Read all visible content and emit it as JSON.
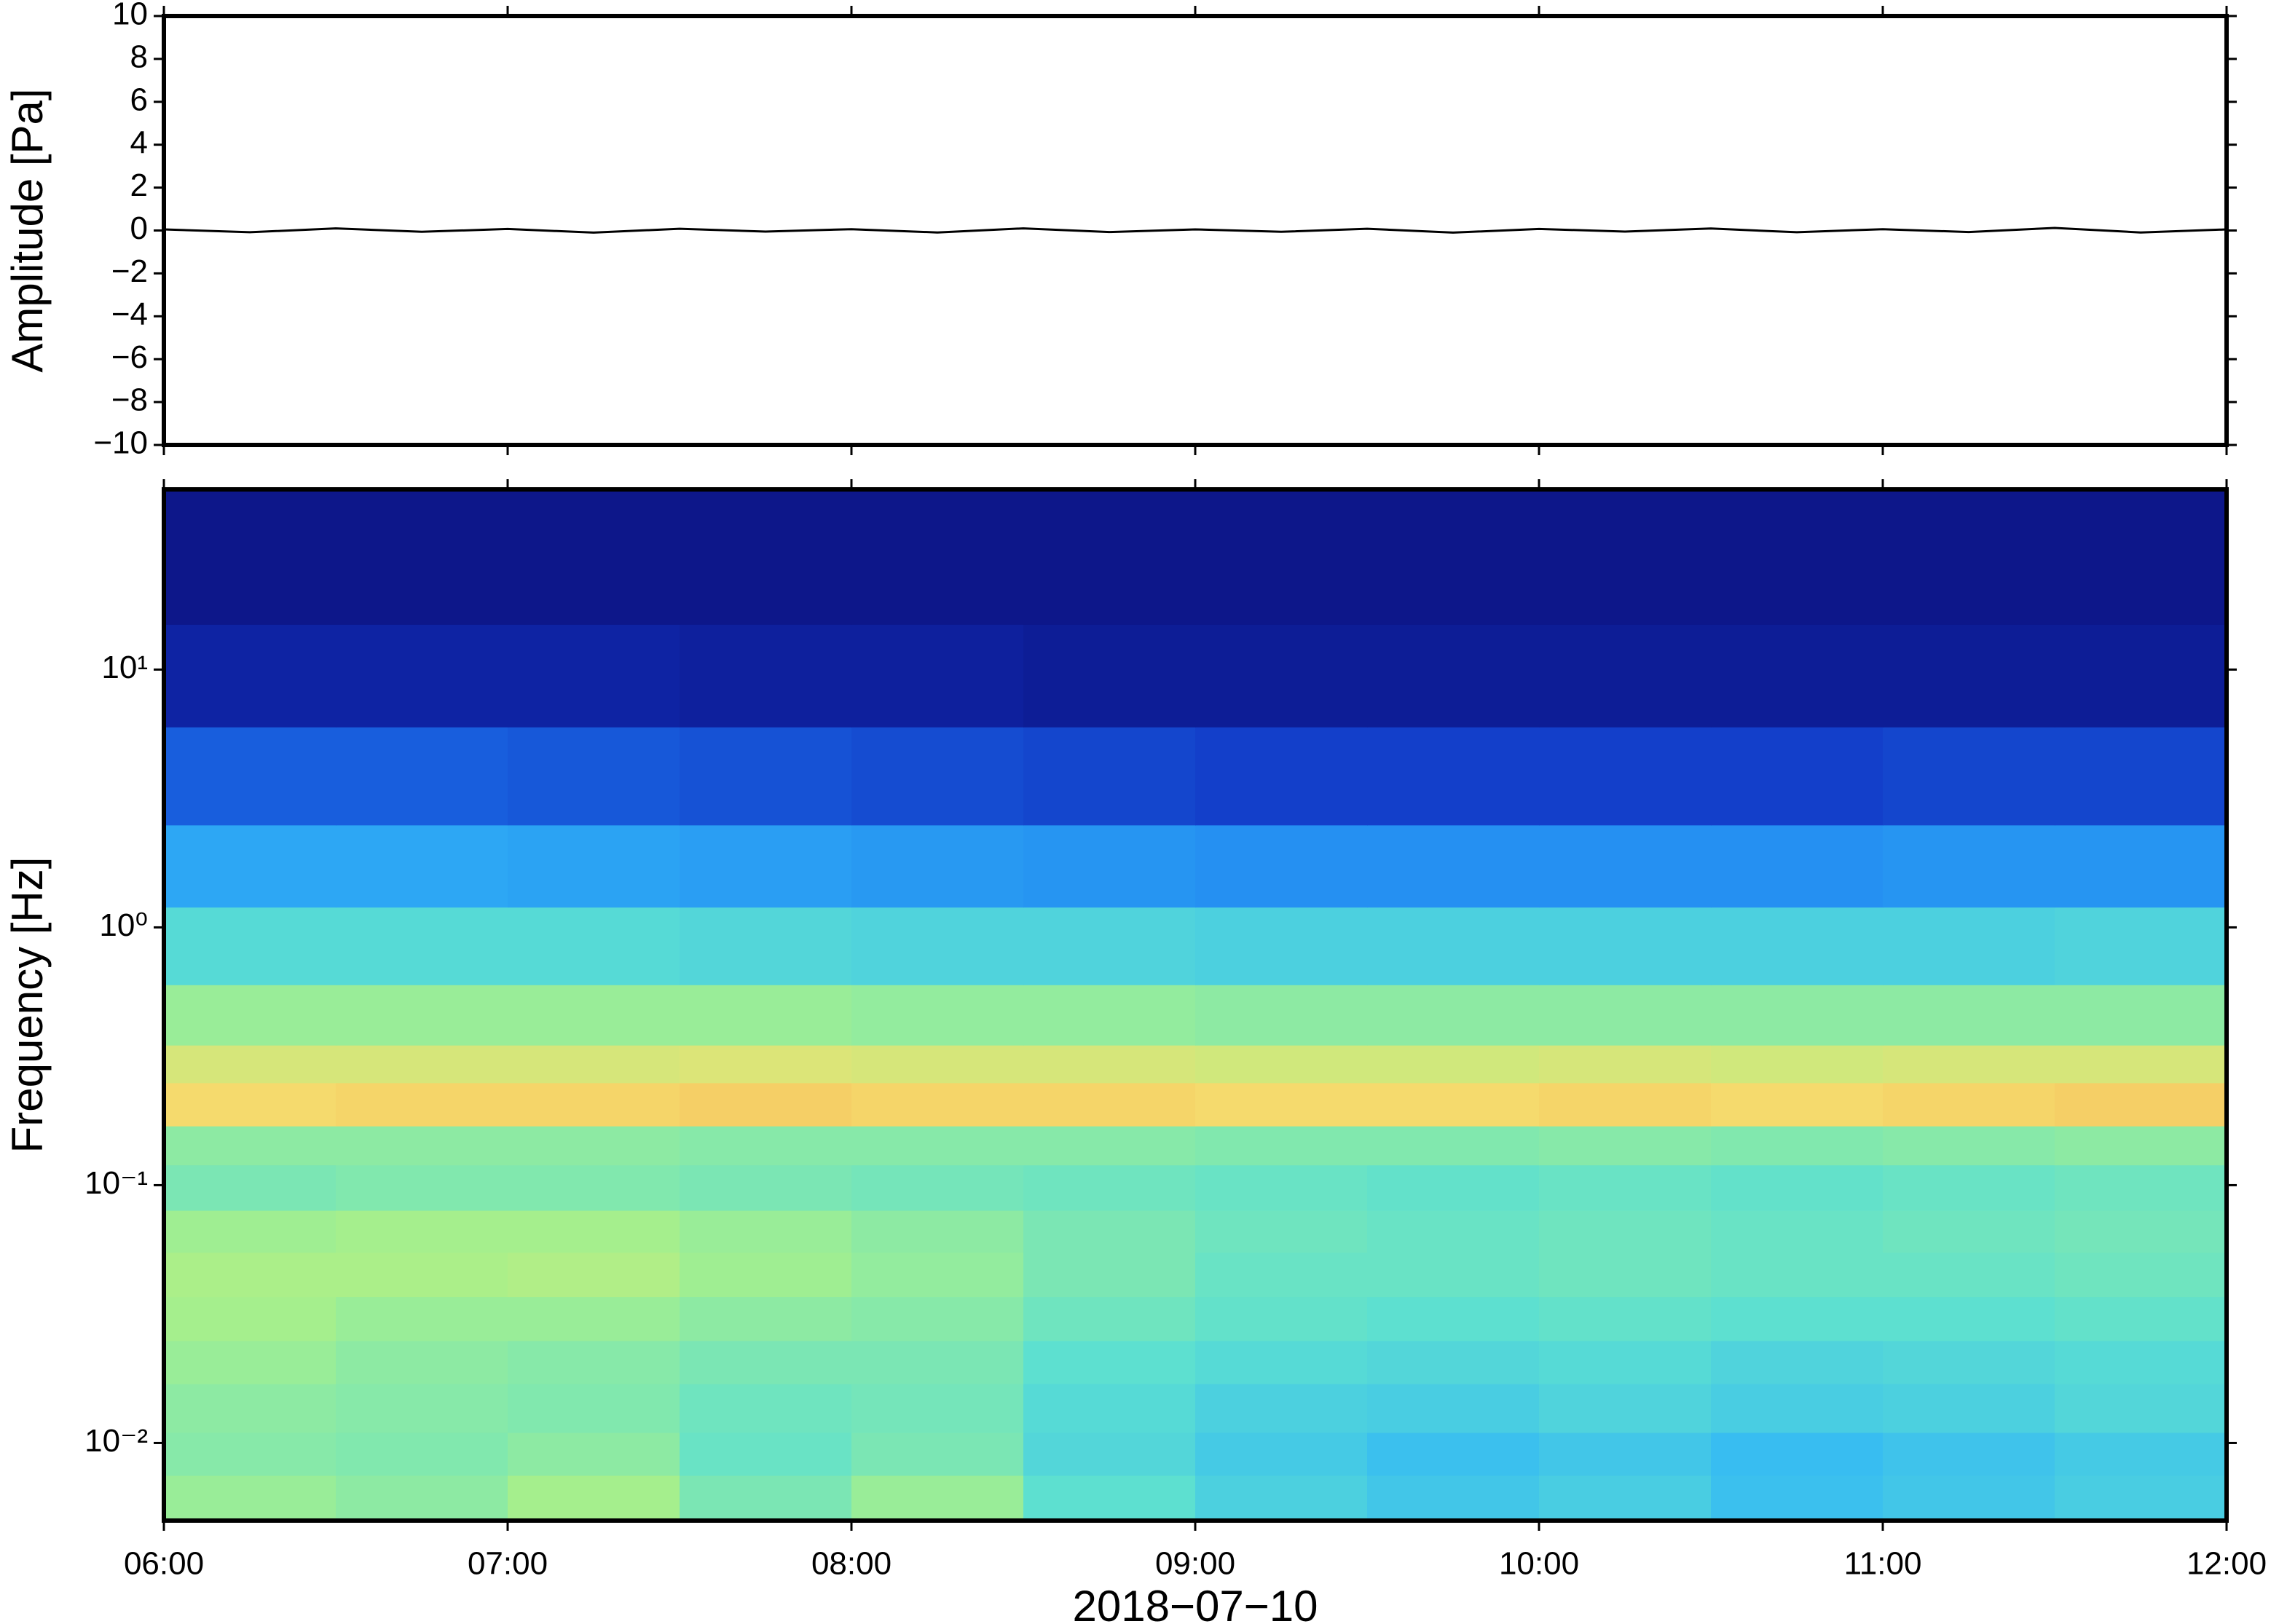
{
  "chart_data": [
    {
      "type": "line",
      "ylabel": "Amplitude [Pa]",
      "color": "#000000",
      "xlim": [
        "06:00",
        "12:00"
      ],
      "xticks": [
        "06:00",
        "07:00",
        "08:00",
        "09:00",
        "10:00",
        "11:00",
        "12:00"
      ],
      "x": [
        "06:00",
        "06:15",
        "06:30",
        "06:45",
        "07:00",
        "07:15",
        "07:30",
        "07:45",
        "08:00",
        "08:15",
        "08:30",
        "08:45",
        "09:00",
        "09:15",
        "09:30",
        "09:45",
        "10:00",
        "10:15",
        "10:30",
        "10:45",
        "11:00",
        "11:15",
        "11:30",
        "11:45",
        "12:00"
      ],
      "values": [
        0.05,
        -0.08,
        0.1,
        -0.06,
        0.07,
        -0.1,
        0.08,
        -0.05,
        0.06,
        -0.09,
        0.1,
        -0.07,
        0.05,
        -0.06,
        0.08,
        -0.1,
        0.07,
        -0.05,
        0.09,
        -0.08,
        0.06,
        -0.07,
        0.12,
        -0.09,
        0.05
      ],
      "ylim": [
        -10,
        10
      ],
      "yticks": [
        {
          "value": -10,
          "label": "−10"
        },
        {
          "value": -8,
          "label": "−8"
        },
        {
          "value": -6,
          "label": "−6"
        },
        {
          "value": -4,
          "label": "−4"
        },
        {
          "value": -2,
          "label": "−2"
        },
        0,
        2,
        4,
        6,
        8,
        10
      ]
    },
    {
      "type": "heatmap",
      "ylabel": "Frequency [Hz]",
      "xlabel": "2018−07−10",
      "log_y": true,
      "xlim": [
        "06:00",
        "12:00"
      ],
      "xticks": [
        "06:00",
        "07:00",
        "08:00",
        "09:00",
        "10:00",
        "11:00",
        "12:00"
      ],
      "ylim": [
        0.005,
        50
      ],
      "yticks": [
        {
          "value": 0.01,
          "label": "10⁻²"
        },
        {
          "value": 0.1,
          "label": "10⁻¹"
        },
        {
          "value": 1,
          "label": "10⁰"
        },
        {
          "value": 10,
          "label": "10¹"
        }
      ],
      "x_edges": [
        "06:00",
        "06:30",
        "07:00",
        "07:30",
        "08:00",
        "08:30",
        "09:00",
        "09:30",
        "10:00",
        "10:30",
        "11:00",
        "11:30",
        "12:00"
      ],
      "y_edges": [
        0.005,
        0.0075,
        0.011,
        0.017,
        0.025,
        0.037,
        0.055,
        0.08,
        0.12,
        0.17,
        0.25,
        0.35,
        0.6,
        1.2,
        2.5,
        6,
        15,
        50
      ],
      "zlim": [
        0,
        100
      ],
      "colormap": [
        "#0b0b70",
        "#1030c0",
        "#1e7df0",
        "#33b8f5",
        "#5de0d0",
        "#a8f08a",
        "#f5e070",
        "#f59a45",
        "#d03020"
      ],
      "z": [
        [
          60,
          58,
          62,
          55,
          60,
          50,
          45,
          42,
          44,
          40,
          42,
          44
        ],
        [
          57,
          56,
          58,
          52,
          55,
          47,
          43,
          40,
          42,
          39,
          41,
          43
        ],
        [
          58,
          57,
          56,
          53,
          54,
          48,
          45,
          44,
          46,
          44,
          45,
          47
        ],
        [
          60,
          58,
          57,
          55,
          55,
          50,
          48,
          47,
          48,
          46,
          47,
          48
        ],
        [
          62,
          60,
          60,
          58,
          57,
          53,
          51,
          50,
          51,
          50,
          50,
          51
        ],
        [
          63,
          63,
          64,
          61,
          59,
          55,
          52,
          52,
          53,
          52,
          52,
          53
        ],
        [
          61,
          62,
          62,
          60,
          58,
          55,
          53,
          52,
          53,
          52,
          53,
          54
        ],
        [
          55,
          56,
          56,
          55,
          54,
          53,
          52,
          51,
          52,
          51,
          52,
          53
        ],
        [
          58,
          58,
          58,
          57,
          57,
          57,
          56,
          56,
          57,
          56,
          57,
          58
        ],
        [
          76,
          77,
          77,
          78,
          77,
          77,
          76,
          76,
          77,
          76,
          77,
          78
        ],
        [
          70,
          70,
          70,
          71,
          70,
          70,
          69,
          69,
          70,
          69,
          70,
          70
        ],
        [
          60,
          60,
          60,
          60,
          59,
          59,
          58,
          58,
          58,
          58,
          58,
          58
        ],
        [
          48,
          48,
          48,
          47,
          46,
          46,
          45,
          45,
          45,
          45,
          45,
          46
        ],
        [
          34,
          34,
          33,
          32,
          31,
          30,
          29,
          29,
          29,
          29,
          30,
          30
        ],
        [
          20,
          20,
          19,
          18,
          17,
          16,
          15,
          15,
          15,
          15,
          16,
          16
        ],
        [
          8,
          8,
          8,
          7,
          7,
          6,
          6,
          6,
          6,
          6,
          6,
          6
        ],
        [
          4,
          4,
          4,
          4,
          4,
          4,
          4,
          4,
          4,
          4,
          4,
          4
        ]
      ]
    }
  ]
}
